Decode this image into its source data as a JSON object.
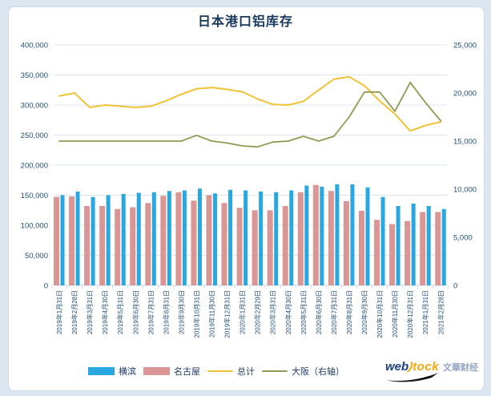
{
  "title": "日本港口铝库存",
  "watermark": {
    "web": "web",
    "s": ")",
    "tock": "tock",
    "suffix": "文華财经"
  },
  "legend": [
    {
      "key": "yokohama",
      "label": "横滨",
      "type": "bar",
      "color": "#29a8e0"
    },
    {
      "key": "nagoya",
      "label": "名古屋",
      "type": "bar",
      "color": "#d99694"
    },
    {
      "key": "total",
      "label": "总计",
      "type": "line",
      "color": "#f0c236"
    },
    {
      "key": "osaka",
      "label": "大阪（右轴）",
      "type": "line",
      "color": "#8f9b52"
    }
  ],
  "chart_data": {
    "type": "bar",
    "title": "日本港口铝库存",
    "categories": [
      "2019年1月31日",
      "2019年2月28日",
      "2019年3月31日",
      "2019年4月30日",
      "2019年5月31日",
      "2019年6月30日",
      "2019年7月31日",
      "2019年8月31日",
      "2019年9月30日",
      "2019年10月31日",
      "2019年11月30日",
      "2019年12月31日",
      "2020年1月31日",
      "2020年2月29日",
      "2020年3月31日",
      "2020年4月30日",
      "2020年5月31日",
      "2020年6月30日",
      "2020年7月31日",
      "2020年8月31日",
      "2020年9月30日",
      "2020年10月31日",
      "2020年11月30日",
      "2020年12月31日",
      "2021年1月31日",
      "2021年2月28日"
    ],
    "series": [
      {
        "key": "yokohama",
        "name": "横滨",
        "type": "bar",
        "axis": "left",
        "color": "#29a8e0",
        "values": [
          150000,
          156000,
          147000,
          150000,
          152000,
          154000,
          155000,
          157000,
          158000,
          161000,
          153000,
          159000,
          158000,
          156000,
          155000,
          158000,
          166000,
          164000,
          168000,
          168000,
          163000,
          147000,
          132000,
          136000,
          132000,
          127000
        ]
      },
      {
        "key": "nagoya",
        "name": "名古屋",
        "type": "bar",
        "axis": "left",
        "color": "#d99694",
        "values": [
          147000,
          148000,
          132000,
          132000,
          127000,
          130000,
          137000,
          149000,
          155000,
          141000,
          150000,
          137000,
          129000,
          125000,
          125000,
          132000,
          155000,
          167000,
          157000,
          140000,
          124000,
          109000,
          102000,
          107000,
          122000,
          122000
        ]
      },
      {
        "key": "total",
        "name": "总计",
        "type": "line",
        "axis": "left",
        "color": "#f0c236",
        "values": [
          315000,
          320000,
          296000,
          300000,
          298000,
          296000,
          298000,
          307000,
          318000,
          327000,
          329000,
          326000,
          322000,
          310000,
          301000,
          300000,
          306000,
          325000,
          343000,
          347000,
          332000,
          307000,
          285000,
          257000,
          266000,
          272000
        ]
      },
      {
        "key": "osaka",
        "name": "大阪（右轴）",
        "type": "line",
        "axis": "right",
        "color": "#8f9b52",
        "values": [
          15000,
          15000,
          15000,
          15000,
          15000,
          15000,
          15000,
          15000,
          15000,
          15600,
          15000,
          14800,
          14500,
          14400,
          14900,
          15000,
          15500,
          15000,
          15500,
          17500,
          20100,
          20100,
          18100,
          21100,
          19000,
          17100
        ]
      }
    ],
    "left_axis": {
      "min": 0,
      "max": 400000,
      "step": 50000,
      "ticks": [
        "0",
        "50,000",
        "100,000",
        "150,000",
        "200,000",
        "250,000",
        "300,000",
        "350,000",
        "400,000"
      ]
    },
    "right_axis": {
      "min": 0,
      "max": 25000,
      "step": 5000,
      "ticks": [
        "0",
        "5,000",
        "10,000",
        "15,000",
        "20,000",
        "25,000"
      ]
    },
    "grid": true,
    "legend_position": "bottom"
  }
}
